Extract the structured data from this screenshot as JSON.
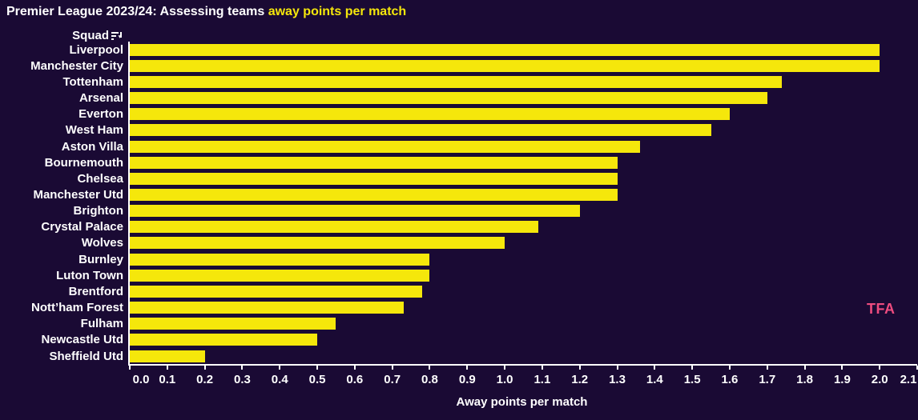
{
  "title": {
    "main": "Premier League 2023/24: Assessing teams ",
    "highlight": "away points per match"
  },
  "column_header": {
    "label": "Squad",
    "sort_icon": "sort-descending-icon"
  },
  "axis": {
    "xlabel": "Away points per match",
    "tick_labels": [
      "0.0",
      "0.1",
      "0.2",
      "0.3",
      "0.4",
      "0.5",
      "0.6",
      "0.7",
      "0.8",
      "0.9",
      "1.0",
      "1.1",
      "1.2",
      "1.3",
      "1.4",
      "1.5",
      "1.6",
      "1.7",
      "1.8",
      "1.9",
      "2.0",
      "2.1"
    ]
  },
  "branding": {
    "logo": "TFA"
  },
  "colors": {
    "background": "#1a0a34",
    "bar": "#f5e70b",
    "text": "#ffffff",
    "highlight": "#f5e70b",
    "logo_pink": "#ee4c7f"
  },
  "chart_data": {
    "type": "bar",
    "orientation": "horizontal",
    "title": "Premier League 2023/24: Assessing teams away points per match",
    "xlabel": "Away points per match",
    "ylabel": "Squad",
    "xlim": [
      0.0,
      2.1
    ],
    "tick_step": 0.1,
    "grid": false,
    "legend": false,
    "categories": [
      "Liverpool",
      "Manchester City",
      "Tottenham",
      "Arsenal",
      "Everton",
      "West Ham",
      "Aston Villa",
      "Bournemouth",
      "Chelsea",
      "Manchester Utd",
      "Brighton",
      "Crystal Palace",
      "Wolves",
      "Burnley",
      "Luton Town",
      "Brentford",
      "Nott’ham Forest",
      "Fulham",
      "Newcastle Utd",
      "Sheffield Utd"
    ],
    "values": [
      2.0,
      2.0,
      1.74,
      1.7,
      1.6,
      1.55,
      1.36,
      1.3,
      1.3,
      1.3,
      1.2,
      1.09,
      1.0,
      0.8,
      0.8,
      0.78,
      0.73,
      0.55,
      0.5,
      0.2
    ]
  }
}
